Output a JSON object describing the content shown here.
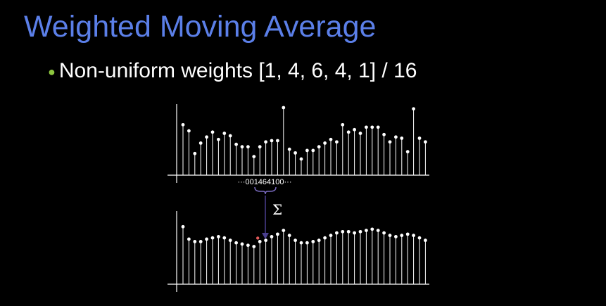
{
  "slide": {
    "title": "Weighted Moving Average",
    "bullet": "Non-uniform weights [1, 4, 6, 4, 1] / 16"
  },
  "diagram": {
    "kernel_label": "···001464100···",
    "operator_symbol": "Σ",
    "colors": {
      "axis": "#ffffff",
      "stem": "#ffffff",
      "brace": "#7a6bc0",
      "arrow": "#4a3f8f",
      "highlight": "#e25a5a"
    },
    "input_signal": [
      0.72,
      0.62,
      0.25,
      0.42,
      0.52,
      0.6,
      0.48,
      0.58,
      0.54,
      0.4,
      0.36,
      0.36,
      0.2,
      0.36,
      0.44,
      0.46,
      0.46,
      1.0,
      0.32,
      0.26,
      0.16,
      0.3,
      0.3,
      0.36,
      0.42,
      0.48,
      0.44,
      0.72,
      0.6,
      0.64,
      0.58,
      0.68,
      0.68,
      0.68,
      0.56,
      0.44,
      0.52,
      0.5,
      0.28,
      0.98,
      0.5,
      0.44
    ],
    "output_signal": [
      0.86,
      0.66,
      0.62,
      0.62,
      0.66,
      0.68,
      0.7,
      0.68,
      0.64,
      0.6,
      0.58,
      0.56,
      0.54,
      0.62,
      0.64,
      0.7,
      0.74,
      0.8,
      0.72,
      0.64,
      0.6,
      0.6,
      0.62,
      0.64,
      0.68,
      0.72,
      0.76,
      0.78,
      0.78,
      0.76,
      0.78,
      0.8,
      0.82,
      0.8,
      0.76,
      0.72,
      0.7,
      0.72,
      0.74,
      0.72,
      0.68,
      0.64
    ]
  }
}
